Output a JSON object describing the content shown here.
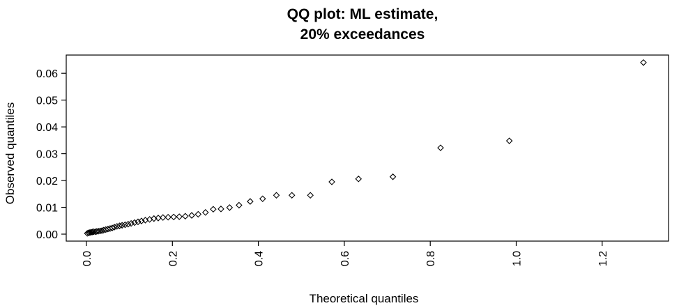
{
  "chart_data": {
    "type": "scatter",
    "title_lines": [
      "QQ plot: ML estimate,",
      "20% exceedances"
    ],
    "xlabel": "Theoretical quantiles",
    "ylabel": "Observed quantiles",
    "xlim": [
      0,
      1.32
    ],
    "ylim": [
      0,
      0.064
    ],
    "x_ticks": [
      0.0,
      0.2,
      0.4,
      0.6,
      0.8,
      1.0,
      1.2
    ],
    "x_tick_labels": [
      "0.0",
      "0.2",
      "0.4",
      "0.6",
      "0.8",
      "1.0",
      "1.2"
    ],
    "y_ticks": [
      0.0,
      0.01,
      0.02,
      0.03,
      0.04,
      0.05,
      0.06
    ],
    "y_tick_labels": [
      "0.00",
      "0.01",
      "0.02",
      "0.03",
      "0.04",
      "0.05",
      "0.06"
    ],
    "grid": false,
    "marker": "open-diamond",
    "points": [
      {
        "x": 0.002,
        "y": 0.0003
      },
      {
        "x": 0.005,
        "y": 0.0005
      },
      {
        "x": 0.008,
        "y": 0.0006
      },
      {
        "x": 0.011,
        "y": 0.0007
      },
      {
        "x": 0.014,
        "y": 0.0008
      },
      {
        "x": 0.017,
        "y": 0.0009
      },
      {
        "x": 0.021,
        "y": 0.0009
      },
      {
        "x": 0.024,
        "y": 0.001
      },
      {
        "x": 0.028,
        "y": 0.0011
      },
      {
        "x": 0.032,
        "y": 0.0012
      },
      {
        "x": 0.036,
        "y": 0.0013
      },
      {
        "x": 0.04,
        "y": 0.0015
      },
      {
        "x": 0.045,
        "y": 0.0017
      },
      {
        "x": 0.05,
        "y": 0.0019
      },
      {
        "x": 0.055,
        "y": 0.0021
      },
      {
        "x": 0.06,
        "y": 0.0023
      },
      {
        "x": 0.065,
        "y": 0.0026
      },
      {
        "x": 0.071,
        "y": 0.0029
      },
      {
        "x": 0.077,
        "y": 0.0031
      },
      {
        "x": 0.083,
        "y": 0.0033
      },
      {
        "x": 0.09,
        "y": 0.0035
      },
      {
        "x": 0.097,
        "y": 0.0037
      },
      {
        "x": 0.104,
        "y": 0.004
      },
      {
        "x": 0.112,
        "y": 0.0043
      },
      {
        "x": 0.12,
        "y": 0.0046
      },
      {
        "x": 0.128,
        "y": 0.0049
      },
      {
        "x": 0.137,
        "y": 0.0052
      },
      {
        "x": 0.147,
        "y": 0.0055
      },
      {
        "x": 0.157,
        "y": 0.0058
      },
      {
        "x": 0.167,
        "y": 0.006
      },
      {
        "x": 0.178,
        "y": 0.0062
      },
      {
        "x": 0.19,
        "y": 0.0063
      },
      {
        "x": 0.203,
        "y": 0.0064
      },
      {
        "x": 0.216,
        "y": 0.0065
      },
      {
        "x": 0.23,
        "y": 0.0067
      },
      {
        "x": 0.245,
        "y": 0.007
      },
      {
        "x": 0.26,
        "y": 0.0074
      },
      {
        "x": 0.277,
        "y": 0.0081
      },
      {
        "x": 0.295,
        "y": 0.0093
      },
      {
        "x": 0.313,
        "y": 0.0094
      },
      {
        "x": 0.333,
        "y": 0.0099
      },
      {
        "x": 0.355,
        "y": 0.0108
      },
      {
        "x": 0.381,
        "y": 0.0122
      },
      {
        "x": 0.41,
        "y": 0.0132
      },
      {
        "x": 0.442,
        "y": 0.0145
      },
      {
        "x": 0.478,
        "y": 0.0145
      },
      {
        "x": 0.521,
        "y": 0.0145
      },
      {
        "x": 0.571,
        "y": 0.0195
      },
      {
        "x": 0.633,
        "y": 0.0206
      },
      {
        "x": 0.713,
        "y": 0.0214
      },
      {
        "x": 0.824,
        "y": 0.0322
      },
      {
        "x": 0.984,
        "y": 0.0348
      },
      {
        "x": 1.296,
        "y": 0.064
      }
    ]
  }
}
